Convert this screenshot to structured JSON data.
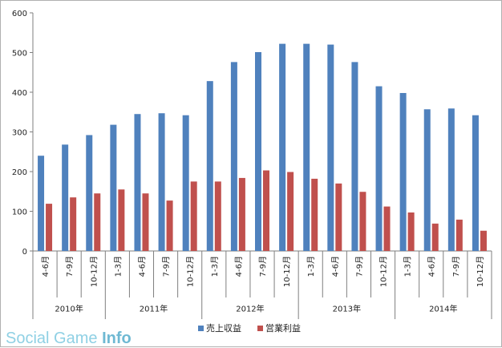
{
  "chart_data": {
    "type": "bar",
    "title": "",
    "xlabel": "",
    "ylabel": "",
    "ylim": [
      0,
      600
    ],
    "yticks": [
      0,
      100,
      200,
      300,
      400,
      500,
      600
    ],
    "grid": false,
    "legend_position": "bottom",
    "categories": [
      "4-6月",
      "7-9月",
      "10-12月",
      "1-3月",
      "4-6月",
      "7-9月",
      "10-12月",
      "1-3月",
      "4-6月",
      "7-9月",
      "10-12月",
      "1-3月",
      "4-6月",
      "7-9月",
      "10-12月",
      "1-3月",
      "4-6月",
      "7-9月",
      "10-12月"
    ],
    "year_groups": [
      {
        "label": "2010年",
        "count": 3
      },
      {
        "label": "2011年",
        "count": 4
      },
      {
        "label": "2012年",
        "count": 4
      },
      {
        "label": "2013年",
        "count": 4
      },
      {
        "label": "2014年",
        "count": 4
      }
    ],
    "series": [
      {
        "name": "売上収益",
        "color": "#4f81bd",
        "values": [
          240,
          268,
          292,
          318,
          345,
          347,
          342,
          428,
          476,
          501,
          522,
          522,
          520,
          476,
          415,
          398,
          357,
          359,
          342
        ]
      },
      {
        "name": "営業利益",
        "color": "#c0504d",
        "values": [
          119,
          135,
          145,
          155,
          145,
          127,
          175,
          175,
          184,
          203,
          199,
          182,
          170,
          149,
          112,
          97,
          69,
          79,
          51
        ]
      }
    ]
  },
  "watermark": {
    "part1": "Social Game ",
    "part2": "Info"
  }
}
